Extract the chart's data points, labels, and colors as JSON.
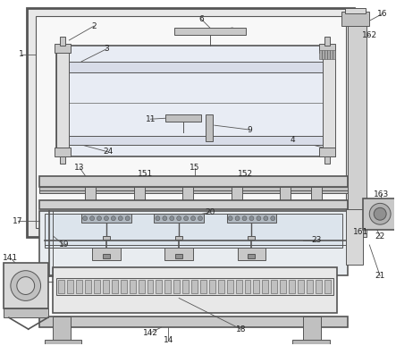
{
  "bg_color": "#ffffff",
  "lc": "#555555",
  "lc_dark": "#333333",
  "fc_white": "#ffffff",
  "fc_light": "#f0f0f0",
  "fc_gray": "#d8d8d8",
  "fc_med": "#b8b8b8",
  "fc_dark": "#909090",
  "fc_blue_light": "#dde4ee",
  "fc_dotted": "#c8c8c8"
}
